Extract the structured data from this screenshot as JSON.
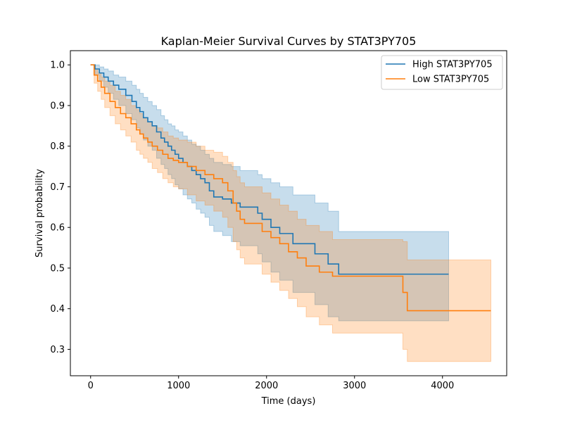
{
  "chart_data": {
    "type": "line",
    "title": "Kaplan-Meier Survival Curves by STAT3PY705",
    "xlabel": "Time (days)",
    "ylabel": "Survival probability",
    "xlim": [
      -230,
      4730
    ],
    "ylim": [
      0.235,
      1.035
    ],
    "xticks": [
      0,
      1000,
      2000,
      3000,
      4000
    ],
    "yticks": [
      0.3,
      0.4,
      0.5,
      0.6,
      0.7,
      0.8,
      0.9,
      1.0
    ],
    "grid": false,
    "legend_position": "top-right",
    "series": [
      {
        "name": "High STAT3PY705",
        "color": "#1f77b4",
        "fill_color": "#1f77b4",
        "x": [
          0,
          50,
          100,
          150,
          200,
          260,
          320,
          400,
          470,
          520,
          560,
          600,
          650,
          700,
          750,
          800,
          840,
          880,
          920,
          960,
          1000,
          1050,
          1100,
          1150,
          1200,
          1250,
          1300,
          1350,
          1400,
          1500,
          1600,
          1700,
          1900,
          1950,
          2050,
          2150,
          2300,
          2550,
          2700,
          2820,
          4070
        ],
        "y": [
          1.0,
          0.99,
          0.98,
          0.97,
          0.96,
          0.95,
          0.94,
          0.925,
          0.91,
          0.895,
          0.885,
          0.87,
          0.86,
          0.85,
          0.835,
          0.82,
          0.81,
          0.8,
          0.79,
          0.78,
          0.77,
          0.76,
          0.75,
          0.74,
          0.73,
          0.72,
          0.71,
          0.69,
          0.675,
          0.67,
          0.66,
          0.65,
          0.635,
          0.62,
          0.6,
          0.585,
          0.56,
          0.535,
          0.51,
          0.485,
          0.485
        ],
        "ci_low": [
          1.0,
          0.975,
          0.96,
          0.945,
          0.93,
          0.915,
          0.9,
          0.88,
          0.865,
          0.845,
          0.83,
          0.815,
          0.8,
          0.79,
          0.77,
          0.755,
          0.745,
          0.73,
          0.72,
          0.705,
          0.695,
          0.68,
          0.67,
          0.66,
          0.645,
          0.635,
          0.625,
          0.605,
          0.59,
          0.58,
          0.565,
          0.555,
          0.535,
          0.515,
          0.49,
          0.47,
          0.44,
          0.41,
          0.38,
          0.37,
          0.37
        ],
        "ci_high": [
          1.0,
          1.0,
          0.995,
          0.99,
          0.985,
          0.975,
          0.97,
          0.96,
          0.95,
          0.94,
          0.93,
          0.92,
          0.91,
          0.9,
          0.89,
          0.875,
          0.865,
          0.855,
          0.85,
          0.84,
          0.835,
          0.825,
          0.815,
          0.805,
          0.8,
          0.79,
          0.78,
          0.77,
          0.76,
          0.755,
          0.75,
          0.74,
          0.73,
          0.72,
          0.71,
          0.7,
          0.68,
          0.66,
          0.64,
          0.59,
          0.59
        ]
      },
      {
        "name": "Low STAT3PY705",
        "color": "#ff7f0e",
        "fill_color": "#ff7f0e",
        "x": [
          0,
          40,
          80,
          120,
          160,
          220,
          280,
          340,
          400,
          460,
          520,
          560,
          600,
          650,
          700,
          760,
          820,
          880,
          940,
          1000,
          1100,
          1200,
          1300,
          1400,
          1500,
          1560,
          1620,
          1660,
          1700,
          1750,
          1950,
          2050,
          2150,
          2250,
          2350,
          2450,
          2600,
          2750,
          3550,
          3600,
          4550
        ],
        "y": [
          1.0,
          0.975,
          0.96,
          0.945,
          0.93,
          0.91,
          0.895,
          0.88,
          0.87,
          0.855,
          0.84,
          0.83,
          0.82,
          0.81,
          0.8,
          0.79,
          0.78,
          0.77,
          0.765,
          0.76,
          0.75,
          0.74,
          0.73,
          0.72,
          0.71,
          0.69,
          0.66,
          0.64,
          0.62,
          0.61,
          0.59,
          0.575,
          0.56,
          0.54,
          0.525,
          0.505,
          0.49,
          0.48,
          0.44,
          0.395,
          0.395
        ],
        "ci_low": [
          1.0,
          0.955,
          0.935,
          0.915,
          0.895,
          0.875,
          0.855,
          0.84,
          0.825,
          0.81,
          0.79,
          0.78,
          0.77,
          0.76,
          0.745,
          0.735,
          0.72,
          0.71,
          0.7,
          0.695,
          0.68,
          0.665,
          0.655,
          0.64,
          0.625,
          0.6,
          0.565,
          0.545,
          0.525,
          0.51,
          0.485,
          0.465,
          0.445,
          0.425,
          0.405,
          0.38,
          0.36,
          0.34,
          0.3,
          0.27,
          0.27
        ],
        "ci_high": [
          1.0,
          0.99,
          0.98,
          0.97,
          0.96,
          0.95,
          0.935,
          0.925,
          0.915,
          0.9,
          0.89,
          0.88,
          0.87,
          0.86,
          0.85,
          0.845,
          0.835,
          0.825,
          0.82,
          0.815,
          0.81,
          0.8,
          0.79,
          0.785,
          0.775,
          0.76,
          0.74,
          0.725,
          0.71,
          0.7,
          0.685,
          0.67,
          0.655,
          0.64,
          0.62,
          0.605,
          0.59,
          0.57,
          0.565,
          0.52,
          0.52
        ]
      }
    ]
  }
}
